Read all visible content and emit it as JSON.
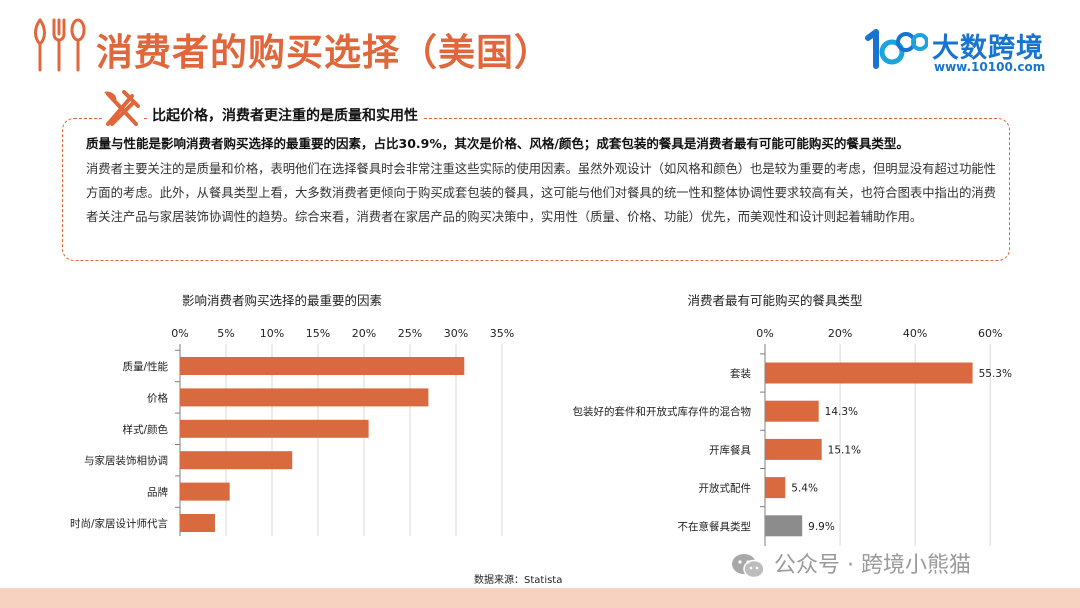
{
  "page": {
    "title": "消费者的购买选择（美国）",
    "logo_name": "大数跨境",
    "logo_url": "www.10100.com",
    "accent_color": "#E0673B",
    "bar_color": "#D9693F",
    "neutral_bar_color": "#8C8C8C",
    "icons": [
      "fork-knife-spoon-icon",
      "logo-10100-icon",
      "fork-knife-icon",
      "wechat-icon"
    ]
  },
  "summary": {
    "heading": "比起价格，消费者更注重的是质量和实用性",
    "lead": "质量与性能是影响消费者购买选择的最重要的因素，占比30.9%，其次是价格、风格/颜色；成套包装的餐具是消费者最有可能可能购买的餐具类型。",
    "body": "消费者主要关注的是质量和价格，表明他们在选择餐具时会非常注重这些实际的使用因素。虽然外观设计（如风格和颜色）也是较为重要的考虑，但明显没有超过功能性方面的考虑。此外，从餐具类型上看，大多数消费者更倾向于购买成套包装的餐具，这可能与他们对餐具的统一性和整体协调性要求较高有关，也符合图表中指出的消费者关注产品与家居装饰协调性的趋势。综合来看，消费者在家居产品的购买决策中，实用性（质量、价格、功能）优先，而美观性和设计则起着辅助作用。"
  },
  "chart_data": [
    {
      "type": "bar",
      "orientation": "horizontal",
      "title": "影响消费者购买选择的最重要的因素",
      "categories": [
        "质量/性能",
        "价格",
        "样式/颜色",
        "与家居装饰相协调",
        "品牌",
        "时尚/家居设计师代言"
      ],
      "values": [
        30.9,
        27.0,
        20.5,
        12.2,
        5.4,
        3.8
      ],
      "unit": "%",
      "xlim": [
        0,
        35
      ],
      "xticks": [
        0,
        5,
        10,
        15,
        20,
        25,
        30,
        35
      ],
      "xtick_labels": [
        "0%",
        "5%",
        "10%",
        "15%",
        "20%",
        "25%",
        "30%",
        "35%"
      ],
      "axis_position": "top",
      "grid": true,
      "data_labels": []
    },
    {
      "type": "bar",
      "orientation": "horizontal",
      "title": "消费者最有可能购买的餐具类型",
      "categories": [
        "套装",
        "包装好的套件和开放式库存件的混合物",
        "开库餐具",
        "开放式配件",
        "不在意餐具类型"
      ],
      "values": [
        55.3,
        14.3,
        15.1,
        5.4,
        9.9
      ],
      "unit": "%",
      "xlim": [
        0,
        65
      ],
      "xticks": [
        0,
        20,
        40,
        60
      ],
      "xtick_labels": [
        "0%",
        "20%",
        "40%",
        "60%"
      ],
      "axis_position": "top",
      "grid": true,
      "data_labels": [
        "55.3%",
        "14.3%",
        "15.1%",
        "5.4%",
        "9.9%"
      ],
      "highlight_last_in_gray": true
    }
  ],
  "source": "数据来源：Statista",
  "watermark": "公众号 · 跨境小熊猫"
}
